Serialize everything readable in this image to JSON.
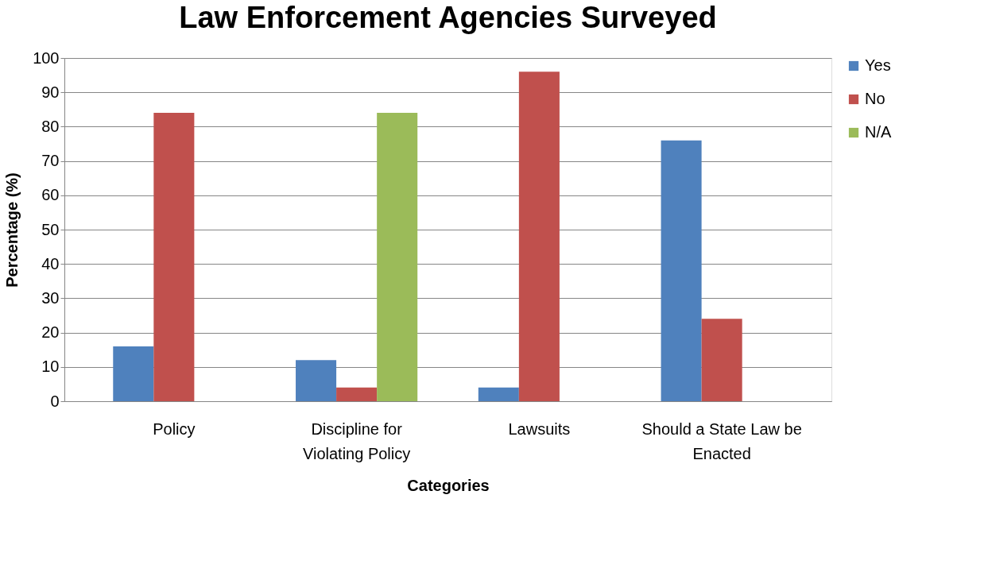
{
  "chart_data": {
    "type": "bar",
    "title": "Law Enforcement Agencies Surveyed",
    "xlabel": "Categories",
    "ylabel": "Percentage (%)",
    "categories": [
      "Policy",
      "Discipline for Violating Policy",
      "Lawsuits",
      "Should a State Law be Enacted"
    ],
    "series": [
      {
        "name": "Yes",
        "color": "#4f81bd",
        "values": [
          16,
          12,
          4,
          76
        ]
      },
      {
        "name": "No",
        "color": "#c0504d",
        "values": [
          84,
          4,
          96,
          24
        ]
      },
      {
        "name": "N/A",
        "color": "#9bbb59",
        "values": [
          null,
          84,
          null,
          null
        ]
      }
    ],
    "ylim": [
      0,
      100
    ],
    "yticks": [
      0,
      10,
      20,
      30,
      40,
      50,
      60,
      70,
      80,
      90,
      100
    ],
    "grid": "y",
    "legend": "right"
  }
}
